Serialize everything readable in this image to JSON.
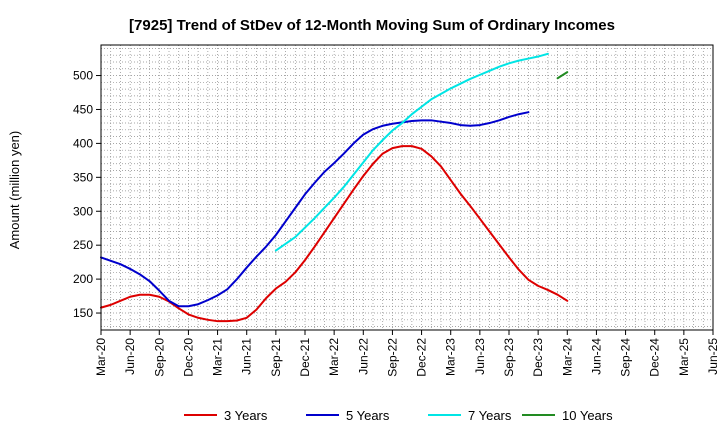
{
  "chart_data": {
    "type": "line",
    "title": "[7925]  Trend of StDev of 12-Month Moving Sum of Ordinary Incomes",
    "xlabel": "",
    "ylabel": "Amount (million yen)",
    "ylim": [
      125,
      545
    ],
    "yticks": [
      150,
      200,
      250,
      300,
      350,
      400,
      450,
      500
    ],
    "x_tick_labels": [
      "Mar-20",
      "Jun-20",
      "Sep-20",
      "Dec-20",
      "Mar-21",
      "Jun-21",
      "Sep-21",
      "Dec-21",
      "Mar-22",
      "Jun-22",
      "Sep-22",
      "Dec-22",
      "Mar-23",
      "Jun-23",
      "Sep-23",
      "Dec-23",
      "Mar-24",
      "Jun-24",
      "Sep-24",
      "Dec-24",
      "Mar-25",
      "Jun-25"
    ],
    "grid": true,
    "legend_position": "bottom",
    "series": [
      {
        "name": "3 Years",
        "color": "#dd0000",
        "start_index": 0,
        "values": [
          158,
          162,
          168,
          174,
          177,
          177,
          174,
          167,
          157,
          148,
          143,
          140,
          138,
          138,
          139,
          143,
          155,
          172,
          186,
          196,
          210,
          228,
          248,
          269,
          290,
          311,
          332,
          352,
          370,
          385,
          393,
          396,
          396,
          392,
          381,
          366,
          346,
          326,
          308,
          289,
          270,
          251,
          232,
          214,
          199,
          190,
          184,
          177,
          168
        ]
      },
      {
        "name": "5 Years",
        "color": "#0000cc",
        "start_index": 0,
        "values": [
          232,
          227,
          222,
          215,
          207,
          197,
          183,
          168,
          160,
          160,
          163,
          169,
          176,
          185,
          200,
          217,
          233,
          248,
          265,
          285,
          305,
          325,
          342,
          358,
          371,
          385,
          400,
          413,
          421,
          426,
          429,
          431,
          433,
          434,
          434,
          432,
          430,
          427,
          426,
          427,
          430,
          434,
          439,
          443,
          446
        ]
      },
      {
        "name": "7 Years",
        "color": "#00e5e5",
        "start_index": 18,
        "values": [
          242,
          252,
          262,
          276,
          290,
          305,
          320,
          336,
          354,
          372,
          390,
          405,
          419,
          430,
          443,
          454,
          465,
          473,
          481,
          488,
          495,
          501,
          507,
          513,
          518,
          522,
          525,
          528,
          532
        ]
      },
      {
        "name": "10 Years",
        "color": "#228B22",
        "start_index": 47,
        "values": [
          496,
          505
        ]
      }
    ]
  }
}
